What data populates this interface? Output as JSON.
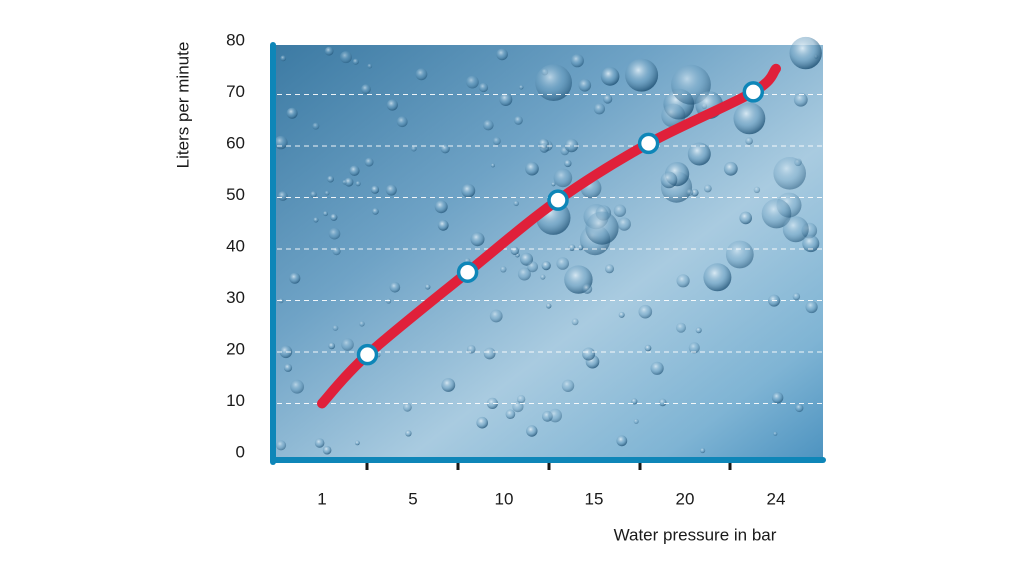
{
  "chart_data": {
    "type": "line",
    "title": "",
    "xlabel": "Water pressure in bar",
    "ylabel": "Liters per minute",
    "x_tick_labels": [
      "1",
      "5",
      "10",
      "15",
      "20",
      "24"
    ],
    "y_ticks": [
      0,
      10,
      20,
      30,
      40,
      50,
      60,
      70,
      80
    ],
    "ylim": [
      0,
      80
    ],
    "grid": "horizontal dashed",
    "background": "water with bubbles",
    "series": [
      {
        "color": "#e0203a",
        "line_start": [
          1,
          10
        ],
        "line_end": [
          24,
          75
        ],
        "points": [
          {
            "x": 3,
            "y": 19.5
          },
          {
            "x": 8,
            "y": 35.5
          },
          {
            "x": 13,
            "y": 49.5
          },
          {
            "x": 18,
            "y": 60.5
          },
          {
            "x": 23,
            "y": 70.5
          }
        ]
      }
    ]
  },
  "colors": {
    "axis": "#0e86b8",
    "line": "#e0203a",
    "marker_stroke": "#0e86b8",
    "marker_fill": "#ffffff",
    "plot_bg_dark": "#3f7fa8",
    "plot_bg_light": "#b6d4e6",
    "grid": "#ffffff"
  }
}
